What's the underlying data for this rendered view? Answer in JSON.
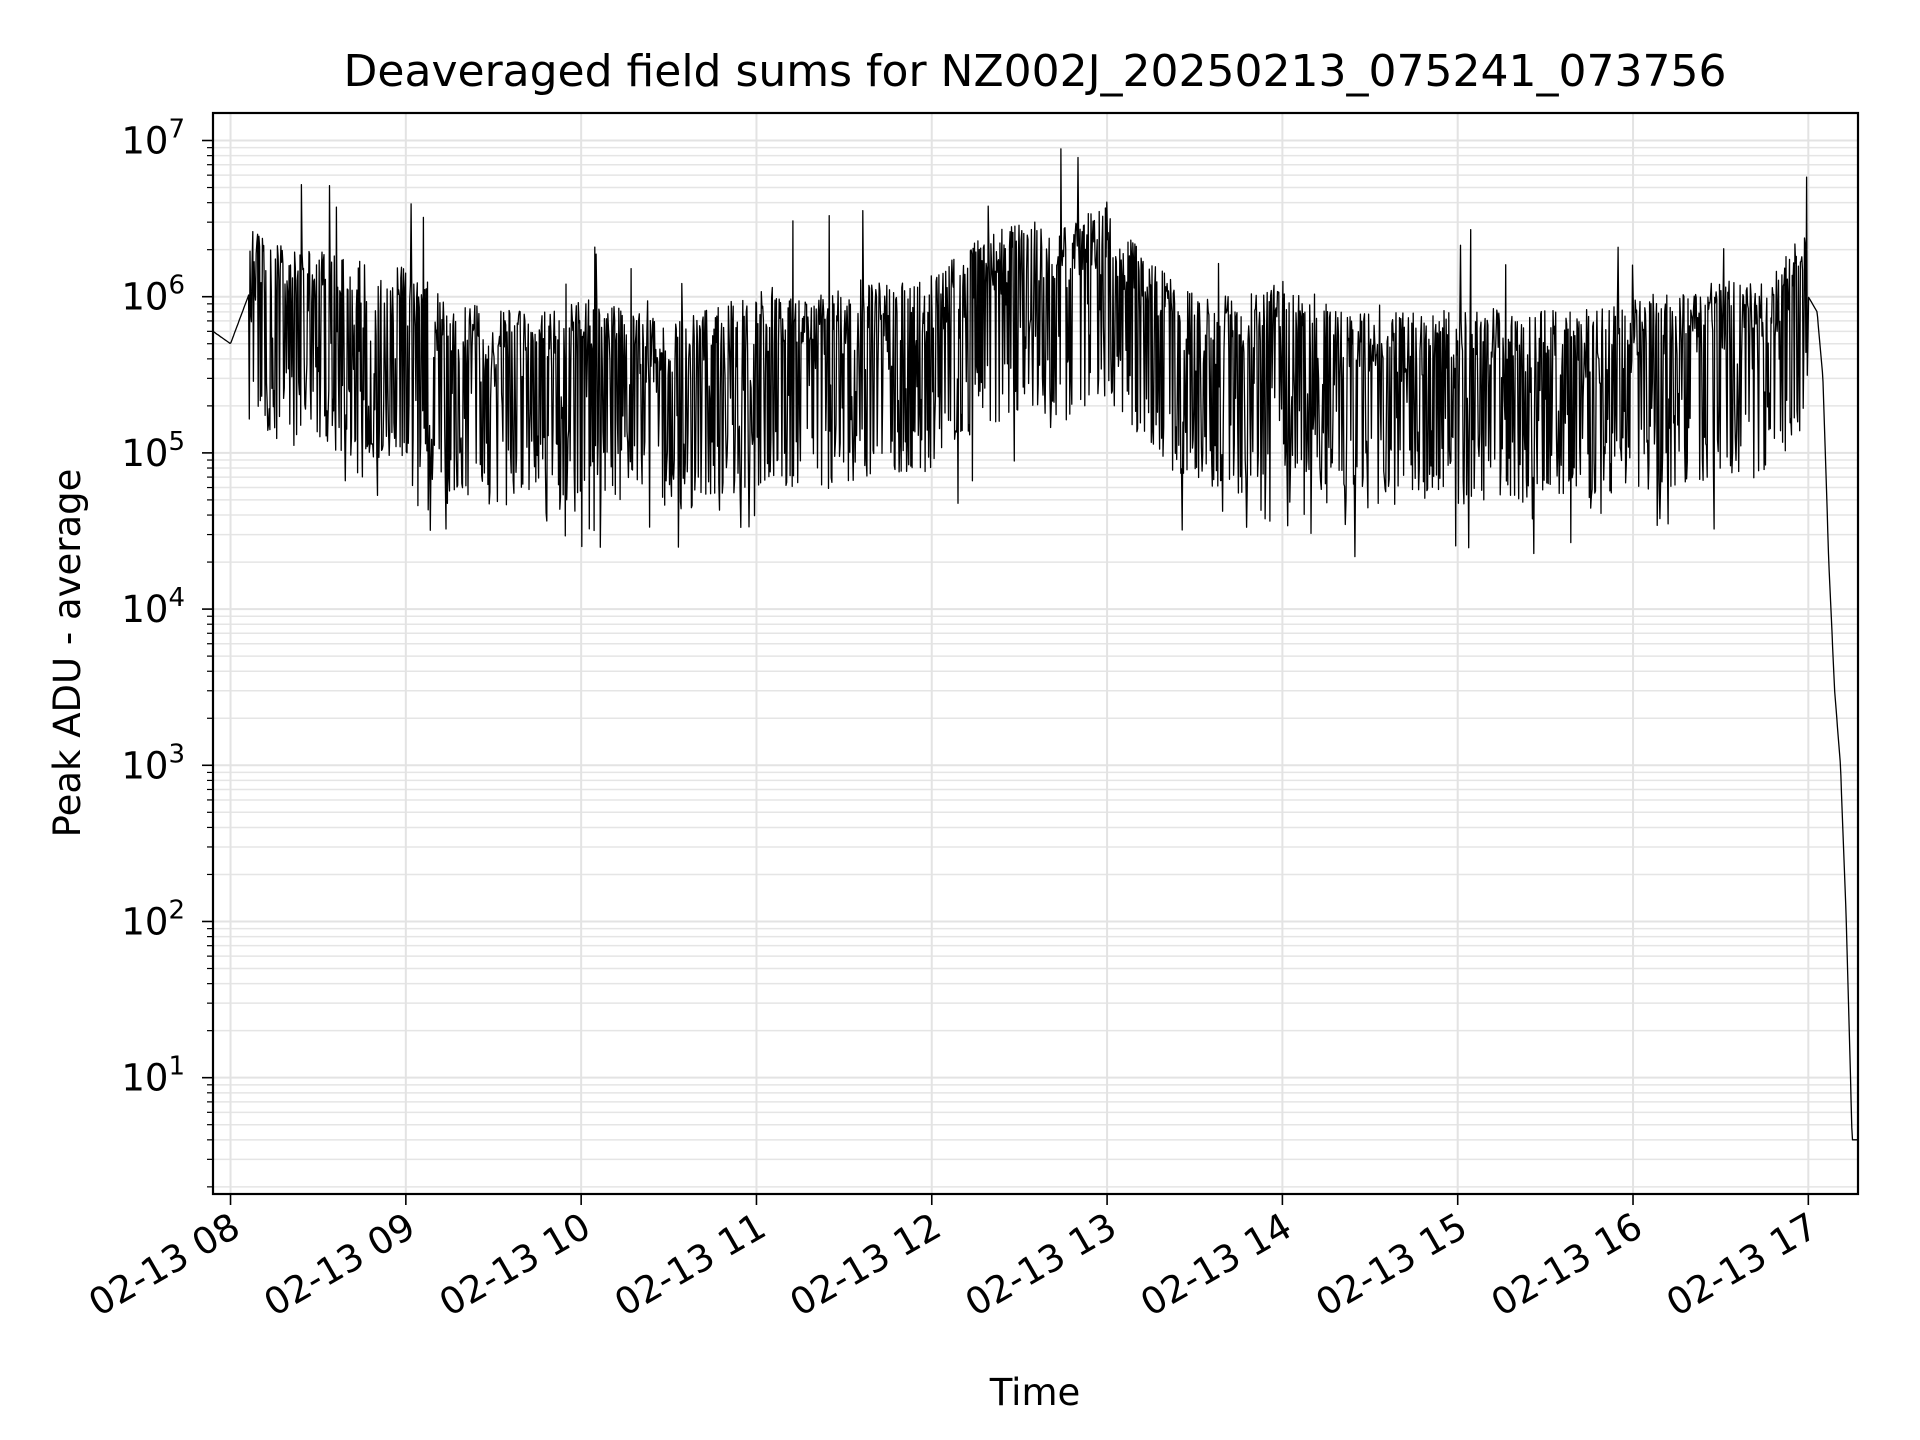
{
  "chart_data": {
    "type": "line",
    "title": "Deaveraged field sums for NZ002J_20250213_075241_073756",
    "xlabel": "Time",
    "ylabel": "Peak ADU - average",
    "yscale": "log",
    "ylim": [
      1.8,
      15000000
    ],
    "xlim": [
      "2025-02-13 07:54",
      "2025-02-13 17:17"
    ],
    "grid": true,
    "x_ticks": [
      "02-13 08",
      "02-13 09",
      "02-13 10",
      "02-13 11",
      "02-13 12",
      "02-13 13",
      "02-13 14",
      "02-13 15",
      "02-13 16",
      "02-13 17"
    ],
    "y_ticks": [
      {
        "base": "10",
        "exp": "1",
        "value": 10
      },
      {
        "base": "10",
        "exp": "2",
        "value": 100
      },
      {
        "base": "10",
        "exp": "3",
        "value": 1000
      },
      {
        "base": "10",
        "exp": "4",
        "value": 10000
      },
      {
        "base": "10",
        "exp": "5",
        "value": 100000
      },
      {
        "base": "10",
        "exp": "6",
        "value": 1000000
      },
      {
        "base": "10",
        "exp": "7",
        "value": 10000000
      }
    ],
    "series": [
      {
        "color": "#000000",
        "x": [
          "2025-02-13 07:54",
          "2025-02-13 08:00",
          "2025-02-13 08:06",
          "2025-02-13 08:15",
          "2025-02-13 08:30",
          "2025-02-13 08:45",
          "2025-02-13 09:00",
          "2025-02-13 09:15",
          "2025-02-13 09:30",
          "2025-02-13 09:45",
          "2025-02-13 10:00",
          "2025-02-13 10:15",
          "2025-02-13 10:30",
          "2025-02-13 10:45",
          "2025-02-13 11:00",
          "2025-02-13 11:15",
          "2025-02-13 11:30",
          "2025-02-13 11:45",
          "2025-02-13 12:00",
          "2025-02-13 12:15",
          "2025-02-13 12:30",
          "2025-02-13 12:45",
          "2025-02-13 13:00",
          "2025-02-13 13:15",
          "2025-02-13 13:30",
          "2025-02-13 13:45",
          "2025-02-13 14:00",
          "2025-02-13 14:15",
          "2025-02-13 14:30",
          "2025-02-13 14:45",
          "2025-02-13 15:00",
          "2025-02-13 15:15",
          "2025-02-13 15:30",
          "2025-02-13 15:45",
          "2025-02-13 16:00",
          "2025-02-13 16:15",
          "2025-02-13 16:30",
          "2025-02-13 16:45",
          "2025-02-13 17:00",
          "2025-02-13 17:03",
          "2025-02-13 17:05",
          "2025-02-13 17:07",
          "2025-02-13 17:09",
          "2025-02-13 17:11",
          "2025-02-13 17:13",
          "2025-02-13 17:15",
          "2025-02-13 17:17"
        ],
        "y": [
          600000,
          500000,
          1000000,
          800000,
          700000,
          600000,
          600000,
          350000,
          300000,
          280000,
          350000,
          300000,
          250000,
          300000,
          400000,
          350000,
          400000,
          450000,
          500000,
          800000,
          1200000,
          1000000,
          1500000,
          600000,
          400000,
          350000,
          450000,
          350000,
          280000,
          300000,
          300000,
          300000,
          300000,
          300000,
          350000,
          400000,
          450000,
          450000,
          1000000,
          800000,
          300000,
          20000,
          3000,
          1000,
          100,
          4,
          4
        ]
      }
    ]
  }
}
